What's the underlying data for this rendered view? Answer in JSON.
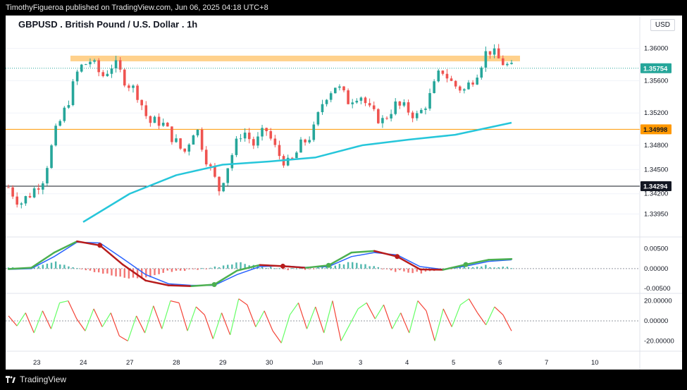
{
  "header": {
    "publisher_line": "TimothyFigueroa published on TradingView.com, Jun 06, 2025 04:18 UTC+8"
  },
  "chart_header": {
    "title": "GBPUSD . British Pound / U.S. Dollar . 1h",
    "currency": "USD"
  },
  "footer": {
    "brand": "TradingView"
  },
  "colors": {
    "up": "#26a69a",
    "down": "#ef5350",
    "ma": "#26c6da",
    "resistance_zone": "#ffcc80",
    "support_line": "#ff9800",
    "osc_fast": "#4caf50",
    "osc_signal": "#2962ff",
    "osc_down": "#b71c1c",
    "cci_up": "#66ff66",
    "cci_down": "#f44336"
  },
  "chart_data": [
    {
      "type": "candlestick",
      "title": "GBPUSD . British Pound / U.S. Dollar . 1h",
      "x_tick_labels": [
        "23",
        "24",
        "27",
        "28",
        "29",
        "30",
        "Jun",
        "3",
        "4",
        "5",
        "6",
        "7",
        "10"
      ],
      "y_tick_labels": [
        "1.36000",
        "1.35600",
        "1.35200",
        "1.34800",
        "1.34500",
        "1.34200",
        "1.33950"
      ],
      "y_range": [
        1.337,
        1.3625
      ],
      "price_labels": [
        {
          "value": "1.35754",
          "kind": "last"
        },
        {
          "value": "1.34998",
          "kind": "support"
        },
        {
          "value": "1.34294",
          "kind": "line"
        }
      ],
      "resistance_zone": [
        1.3584,
        1.3591
      ],
      "horizontal_lines": [
        1.34998,
        1.34294
      ],
      "close_path": [
        {
          "day": "23",
          "close": 1.3428
        },
        {
          "day": "23",
          "close": 1.3408
        },
        {
          "day": "23",
          "close": 1.3422
        },
        {
          "day": "23",
          "close": 1.344
        },
        {
          "day": "24",
          "close": 1.3495
        },
        {
          "day": "24",
          "close": 1.353
        },
        {
          "day": "24",
          "close": 1.3575
        },
        {
          "day": "24",
          "close": 1.3585
        },
        {
          "day": "27",
          "close": 1.3565
        },
        {
          "day": "27",
          "close": 1.3582
        },
        {
          "day": "27",
          "close": 1.356
        },
        {
          "day": "28",
          "close": 1.3545
        },
        {
          "day": "28",
          "close": 1.3508
        },
        {
          "day": "28",
          "close": 1.351
        },
        {
          "day": "28",
          "close": 1.349
        },
        {
          "day": "29",
          "close": 1.347
        },
        {
          "day": "29",
          "close": 1.3505
        },
        {
          "day": "29",
          "close": 1.346
        },
        {
          "day": "29",
          "close": 1.3425
        },
        {
          "day": "30",
          "close": 1.3465
        },
        {
          "day": "30",
          "close": 1.35
        },
        {
          "day": "30",
          "close": 1.348
        },
        {
          "day": "30",
          "close": 1.35
        },
        {
          "day": "30",
          "close": 1.347
        },
        {
          "day": "Jun",
          "close": 1.3455
        },
        {
          "day": "Jun",
          "close": 1.348
        },
        {
          "day": "Jun",
          "close": 1.3495
        },
        {
          "day": "Jun",
          "close": 1.354
        },
        {
          "day": "3",
          "close": 1.3555
        },
        {
          "day": "3",
          "close": 1.3535
        },
        {
          "day": "3",
          "close": 1.3545
        },
        {
          "day": "4",
          "close": 1.352
        },
        {
          "day": "4",
          "close": 1.351
        },
        {
          "day": "4",
          "close": 1.353
        },
        {
          "day": "4",
          "close": 1.3525
        },
        {
          "day": "5",
          "close": 1.3515
        },
        {
          "day": "5",
          "close": 1.354
        },
        {
          "day": "5",
          "close": 1.3575
        },
        {
          "day": "5",
          "close": 1.3555
        },
        {
          "day": "5",
          "close": 1.3548
        },
        {
          "day": "6",
          "close": 1.357
        },
        {
          "day": "6",
          "close": 1.36
        },
        {
          "day": "6",
          "close": 1.3585
        },
        {
          "day": "6",
          "close": 1.3575
        }
      ],
      "moving_average": [
        {
          "day": "24",
          "value": 1.3385
        },
        {
          "day": "27",
          "value": 1.342
        },
        {
          "day": "28",
          "value": 1.3443
        },
        {
          "day": "29",
          "value": 1.3456
        },
        {
          "day": "30",
          "value": 1.346
        },
        {
          "day": "Jun",
          "value": 1.3465
        },
        {
          "day": "3",
          "value": 1.348
        },
        {
          "day": "4",
          "value": 1.3487
        },
        {
          "day": "5",
          "value": 1.3493
        },
        {
          "day": "6",
          "value": 1.3508
        }
      ]
    },
    {
      "type": "line",
      "y_tick_labels": [
        "0.00500",
        "0.00000",
        "-0.00500"
      ],
      "y_range": [
        -0.0055,
        0.0072
      ],
      "series": [
        {
          "values": [
            -0.0001,
            0.0002,
            0.004,
            0.0068,
            0.0058,
            0.001,
            -0.003,
            -0.0042,
            -0.0044,
            -0.004,
            -0.0005,
            0.0009,
            0.0006,
            0.0002,
            0.0008,
            0.004,
            0.0044,
            0.003,
            -0.0002,
            -0.0003,
            0.001,
            0.0022,
            0.0024
          ]
        },
        {
          "values": [
            -0.0002,
            0.0,
            0.003,
            0.0066,
            0.0064,
            0.0025,
            -0.0015,
            -0.0038,
            -0.0042,
            -0.0042,
            -0.0015,
            0.0005,
            0.0007,
            0.0003,
            0.0005,
            0.003,
            0.004,
            0.0034,
            0.0005,
            -0.0002,
            0.0006,
            0.0018,
            0.0022
          ]
        }
      ]
    },
    {
      "type": "line",
      "y_tick_labels": [
        "20.00000",
        "0.00000",
        "-20.00000"
      ],
      "y_range": [
        -26,
        26
      ],
      "values": [
        5,
        -5,
        8,
        -12,
        10,
        -8,
        18,
        20,
        2,
        -10,
        12,
        -6,
        8,
        -15,
        -20,
        5,
        -12,
        15,
        -8,
        20,
        18,
        -10,
        14,
        6,
        -18,
        8,
        -14,
        22,
        16,
        -6,
        10,
        -10,
        -22,
        6,
        18,
        -8,
        14,
        -12,
        20,
        -20,
        -4,
        12,
        18,
        2,
        16,
        -8,
        8,
        -12,
        20,
        10,
        -20,
        12,
        -6,
        16,
        22,
        8,
        -4,
        14,
        6,
        -10
      ]
    }
  ]
}
